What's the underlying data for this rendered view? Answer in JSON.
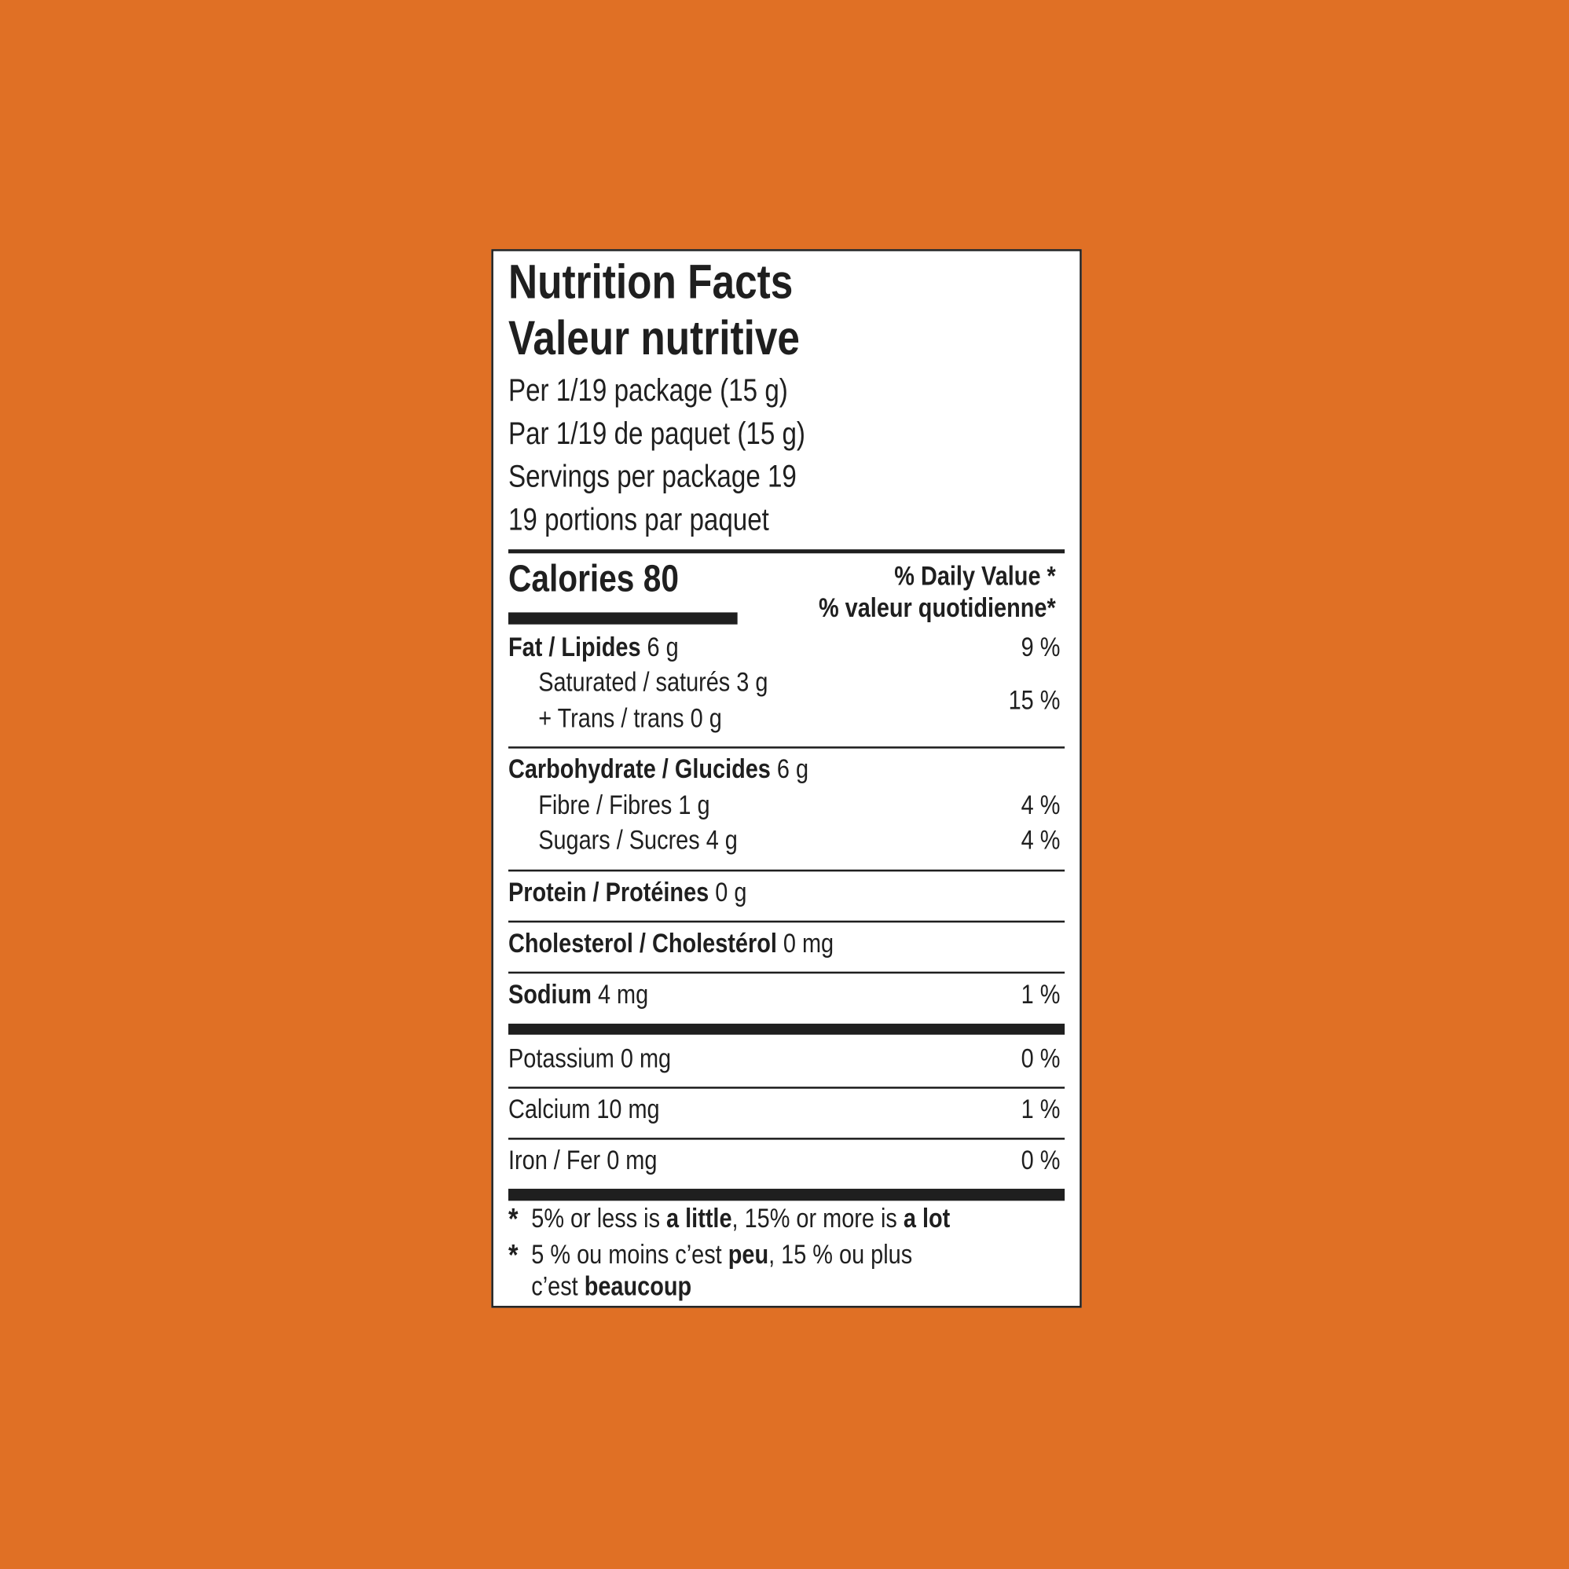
{
  "colors": {
    "background": "#e07025",
    "label": "#ffffff",
    "ink": "#1f1f1f"
  },
  "title_en": "Nutrition Facts",
  "title_fr": "Valeur nutritive",
  "serving": [
    "Per 1/19 package (15 g)",
    "Par 1/19 de paquet (15 g)",
    "Servings per package 19",
    "19 portions par paquet"
  ],
  "calories": "Calories 80",
  "dv_header": [
    "% Daily Value *",
    "% valeur quotidienne*"
  ],
  "rows": {
    "fat": {
      "label": "Fat / Lipides",
      "amount": "6 g",
      "dv": "9 %"
    },
    "saturated": {
      "label": "Saturated / saturés 3 g"
    },
    "trans": {
      "label": "+ Trans / trans 0 g"
    },
    "sat_trans_dv": "15 %",
    "carb": {
      "label": "Carbohydrate / Glucides",
      "amount": "6 g"
    },
    "fibre": {
      "label": "Fibre / Fibres 1 g",
      "dv": "4 %"
    },
    "sugars": {
      "label": "Sugars / Sucres 4 g",
      "dv": "4 %"
    },
    "protein": {
      "label": "Protein / Protéines",
      "amount": "0 g"
    },
    "cholesterol": {
      "label": "Cholesterol / Cholestérol",
      "amount": "0 mg"
    },
    "sodium": {
      "label": "Sodium",
      "amount": "4 mg",
      "dv": "1 %"
    },
    "potassium": {
      "label": "Potassium 0 mg",
      "dv": "0 %"
    },
    "calcium": {
      "label": "Calcium 10 mg",
      "dv": "1 %"
    },
    "iron": {
      "label": "Iron / Fer 0 mg",
      "dv": "0 %"
    }
  },
  "footnote": {
    "asterisk": "*",
    "en": [
      "5% or less is ",
      "a little",
      ", 15% or more is ",
      "a lot"
    ],
    "fr": [
      "5 % ou moins c’est ",
      "peu",
      ", 15 % ou plus"
    ],
    "fr2": [
      "c’est ",
      "beaucoup"
    ]
  }
}
